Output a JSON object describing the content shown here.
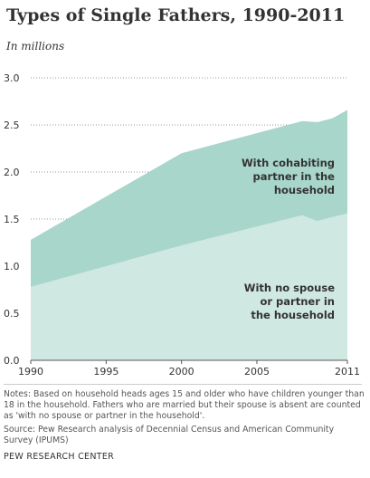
{
  "chart_data": {
    "type": "area",
    "stacked": true,
    "title": "Types of Single Fathers, 1990-2011",
    "subtitle": "In millions",
    "x": [
      1990,
      2000,
      2008,
      2009,
      2010,
      2011
    ],
    "series": [
      {
        "name": "With no spouse or partner in the household",
        "values": [
          0.78,
          1.22,
          1.54,
          1.48,
          1.52,
          1.56
        ],
        "color": "#cfe8e1"
      },
      {
        "name": "With cohabiting partner in the household",
        "values": [
          0.5,
          0.98,
          1.0,
          1.05,
          1.05,
          1.1
        ],
        "color": "#a9d6ca"
      }
    ],
    "label_lines": {
      "nospouse": [
        "With no spouse",
        "or partner in",
        "the household"
      ],
      "cohabiting": [
        "With cohabiting",
        "partner in the",
        "household"
      ]
    },
    "ylim": [
      0,
      3.0
    ],
    "yticks": [
      "0.0",
      "0.5",
      "1.0",
      "1.5",
      "2.0",
      "2.5",
      "3.0"
    ],
    "xlim": [
      1990,
      2011
    ],
    "xticks": [
      "1990",
      "1995",
      "2000",
      "2005",
      "2011"
    ],
    "grid": true
  },
  "notes": "Notes: Based on household heads ages 15 and older who have children younger than 18 in the household. Fathers who  are married but their spouse is absent are counted as 'with no spouse or partner in the household'.",
  "source": "Source: Pew Research analysis of Decennial Census and American Community Survey (IPUMS)",
  "brand": "PEW RESEARCH CENTER"
}
